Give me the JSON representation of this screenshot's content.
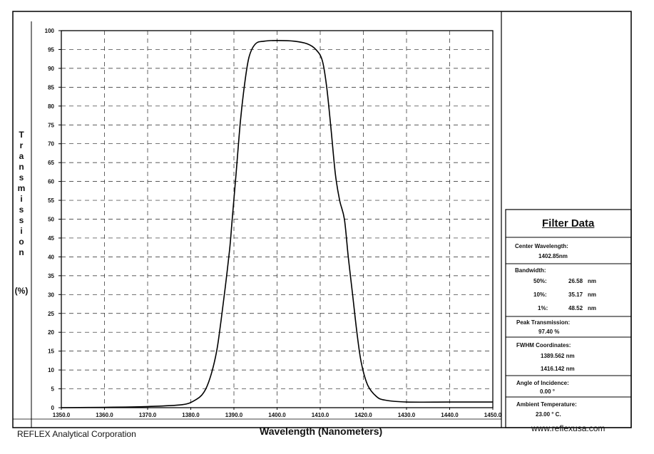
{
  "chart_data": {
    "type": "line",
    "title": "",
    "xlabel": "Wavelength  (Nanometers)",
    "ylabel": "Transmission",
    "ylabel_unit": "(%)",
    "xlim": [
      1350,
      1450
    ],
    "ylim": [
      0,
      100
    ],
    "x_ticks": [
      "1350.0",
      "1360.0",
      "1370.0",
      "1380.0",
      "1390.0",
      "1400.0",
      "1410.0",
      "1420.0",
      "1430.0",
      "1440.0",
      "1450.0"
    ],
    "y_ticks": [
      "0",
      "5",
      "10",
      "15",
      "20",
      "25",
      "30",
      "35",
      "40",
      "45",
      "50",
      "55",
      "60",
      "65",
      "70",
      "75",
      "80",
      "85",
      "90",
      "95",
      "100"
    ],
    "grid": true,
    "series": [
      {
        "x": [
          1350,
          1360,
          1370,
          1378,
          1381,
          1383,
          1384.5,
          1386,
          1387,
          1388,
          1389,
          1389.6,
          1390.5,
          1391.5,
          1392.5,
          1393.5,
          1395,
          1397,
          1400,
          1404,
          1407,
          1409,
          1410.5,
          1411.5,
          1412.5,
          1413.5,
          1414.5,
          1415.6,
          1416.5,
          1417.5,
          1418.5,
          1419.5,
          1421,
          1423,
          1425,
          1430,
          1440,
          1450
        ],
        "y": [
          0,
          0.1,
          0.3,
          0.8,
          2,
          4,
          8,
          15,
          23,
          32,
          42,
          50,
          62,
          76,
          86,
          93,
          96.5,
          97.2,
          97.4,
          97.2,
          96.5,
          95,
          92,
          85,
          74,
          62,
          55,
          50,
          40,
          30,
          20,
          12,
          6,
          3,
          2,
          1.5,
          1.5,
          1.5
        ]
      }
    ]
  },
  "y_axis_letters": [
    "T",
    "r",
    "a",
    "n",
    "s",
    "m",
    "i",
    "s",
    "s",
    "i",
    "o",
    "n"
  ],
  "filter_data": {
    "title": "Filter Data",
    "center_wavelength_label": "Center Wavelength:",
    "center_wavelength_value": "1402.85nm",
    "bandwidth_label": "Bandwidth:",
    "bandwidth_rows": [
      {
        "label": "50%:",
        "value": "26.58",
        "unit": "nm"
      },
      {
        "label": "10%:",
        "value": "35.17",
        "unit": "nm"
      },
      {
        "label": "1%:",
        "value": "48.52",
        "unit": "nm"
      }
    ],
    "peak_label": "Peak Transmission:",
    "peak_value": "97.40  %",
    "fwhm_label": "FWHM Coordinates:",
    "fwhm_values": [
      "1389.562  nm",
      "1416.142  nm"
    ],
    "angle_label": "Angle of Incidence:",
    "angle_value": "0.00 °",
    "temp_label": "Ambient Temperature:",
    "temp_value": "23.00 ° C."
  },
  "footer": {
    "company": "REFLEX Analytical Corporation",
    "website": "www.reflexusa.com"
  }
}
